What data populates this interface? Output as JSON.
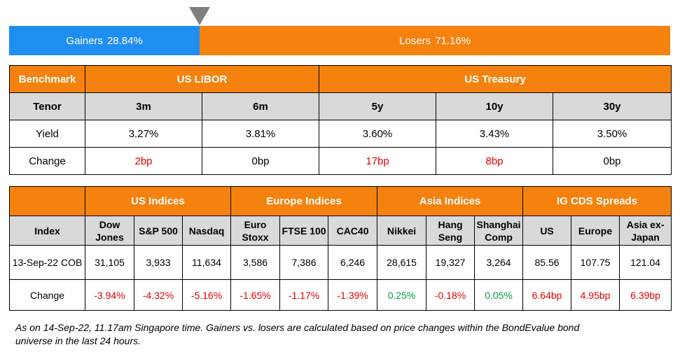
{
  "breadth": {
    "gainers_label": "Gainers",
    "gainers_pct": "28.84%",
    "losers_label": "Losers",
    "losers_pct": "71.16%",
    "gainers_fraction": 0.2884,
    "gainers_color": "#1f8ef1",
    "losers_color": "#f5820e"
  },
  "rates": {
    "benchmark_label": "Benchmark",
    "libor_label": "US LIBOR",
    "treasury_label": "US Treasury",
    "tenor_label": "Tenor",
    "tenors": [
      "3m",
      "6m",
      "5y",
      "10y",
      "30y"
    ],
    "yield_label": "Yield",
    "yields": [
      "3.27%",
      "3.81%",
      "3.60%",
      "3.43%",
      "3.50%"
    ],
    "change_label": "Change",
    "changes": [
      "2bp",
      "0bp",
      "17bp",
      "8bp",
      "0bp"
    ]
  },
  "markets": {
    "groups": [
      "US Indices",
      "Europe Indices",
      "Asia Indices",
      "IG CDS Spreads"
    ],
    "index_label": "Index",
    "indices": [
      [
        "Dow",
        "Jones"
      ],
      [
        "S&P 500",
        ""
      ],
      [
        "Nasdaq",
        ""
      ],
      [
        "Euro",
        "Stoxx"
      ],
      [
        "FTSE 100",
        ""
      ],
      [
        "CAC40",
        ""
      ],
      [
        "Nikkei",
        ""
      ],
      [
        "Hang",
        "Seng"
      ],
      [
        "Shanghai",
        "Comp"
      ],
      [
        "US",
        ""
      ],
      [
        "Europe",
        ""
      ],
      [
        "Asia ex-",
        "Japan"
      ]
    ],
    "date_label": "13-Sep-22 COB",
    "values": [
      "31,105",
      "3,933",
      "11,634",
      "3,586",
      "7,386",
      "6,246",
      "28,615",
      "19,327",
      "3,264",
      "85.56",
      "107.75",
      "121.04"
    ],
    "change_label": "Change",
    "changes": [
      "-3.94%",
      "-4.32%",
      "-5.16%",
      "-1.65%",
      "-1.17%",
      "-1.39%",
      "0.25%",
      "-0.18%",
      "0.05%",
      "6.64bp",
      "4.95bp",
      "6.39bp"
    ],
    "change_colors": [
      "red",
      "red",
      "red",
      "red",
      "red",
      "red",
      "green",
      "red",
      "green",
      "red",
      "red",
      "red"
    ]
  },
  "footnote": {
    "line1": "As on 14-Sep-22, 11.17am Singapore time. Gainers vs. losers are calculated based on price changes within the BondEvalue bond",
    "line2": "universe in the last 24 hours."
  }
}
